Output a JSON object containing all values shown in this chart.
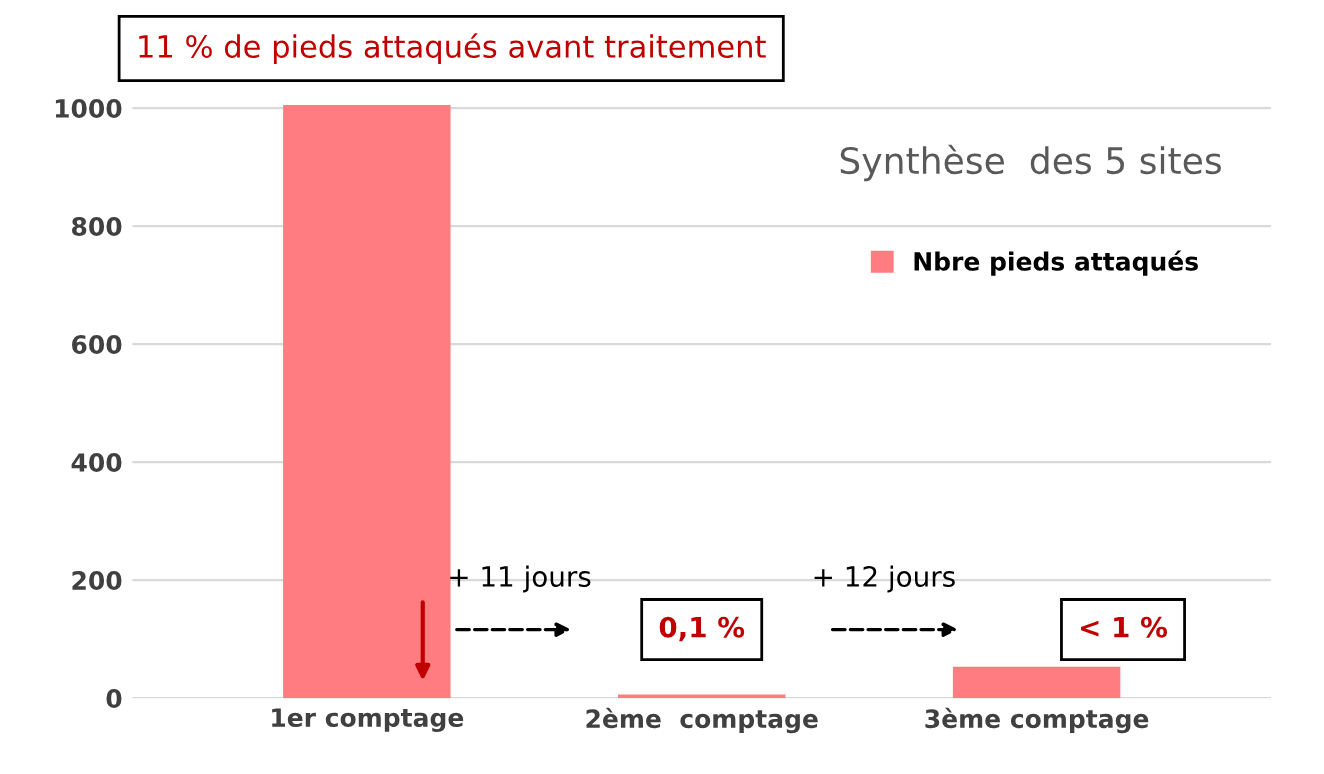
{
  "chart_data": {
    "type": "bar",
    "title": "Synthèse  des 5 sites",
    "categories": [
      "1er comptage",
      "2ème  comptage",
      "3ème comptage"
    ],
    "series": [
      {
        "name": "Nbre pieds attaqués",
        "color": "#ff7c80",
        "values": [
          1005,
          6,
          53
        ]
      }
    ],
    "ylim": [
      0,
      1010
    ],
    "yticks": [
      0,
      200,
      400,
      600,
      800,
      1000
    ],
    "grid": "y",
    "legend": "top right",
    "annotations": [
      "11 % de pieds attaqués avant traitement",
      "+ 11 jours",
      "+ 12 jours",
      "0,1 %",
      "< 1 %"
    ]
  }
}
